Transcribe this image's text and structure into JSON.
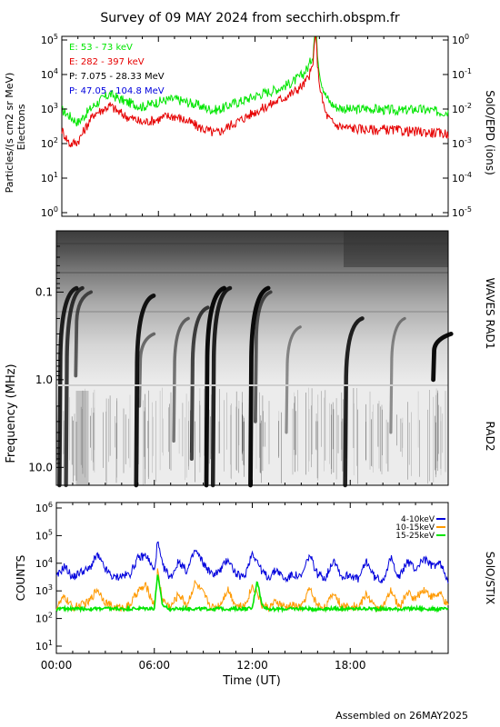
{
  "title": "Survey of 09 MAY 2024 from secchirh.obspm.fr",
  "footer": "Assembled on 26MAY2025",
  "x_axis": {
    "label": "Time (UT)",
    "ticks": [
      "00:00",
      "06:00",
      "12:00",
      "18:00"
    ],
    "range_hours": [
      0,
      24
    ]
  },
  "panels": {
    "particles": {
      "ylabel_left": "Particles/(s cm2 sr MeV)",
      "ylabel_left2": "Electrons",
      "ylabel_right": "SolO/EPD (ions)",
      "left_ticks": [
        "10^0",
        "10^1",
        "10^2",
        "10^3",
        "10^4",
        "10^5"
      ],
      "right_ticks": [
        "10^-5",
        "10^-4",
        "10^-3",
        "10^-2",
        "10^-1",
        "10^0"
      ]
    },
    "spectrogram": {
      "ylabel": "Frequency (MHz)",
      "right_label_top": "WAVES RAD1",
      "right_label_bottom": "RAD2",
      "ticks": [
        "0.1",
        "1.0",
        "10.0"
      ]
    },
    "stix": {
      "ylabel": "COUNTS",
      "right_label": "SolO/STIX",
      "ticks": [
        "10^1",
        "10^2",
        "10^3",
        "10^4",
        "10^5",
        "10^6"
      ]
    }
  },
  "chart_data": [
    {
      "type": "line",
      "yscale": "log",
      "ylim": [
        1,
        100000
      ],
      "ylabel": "Particles/(s cm2 sr MeV)",
      "series": [
        {
          "name": "E: 53 - 73 keV",
          "color": "#00e600",
          "x": [
            0,
            0.5,
            1,
            1.5,
            2,
            2.5,
            3,
            3.5,
            4,
            4.5,
            5,
            5.5,
            6,
            6.5,
            7,
            7.5,
            8,
            8.5,
            9,
            9.5,
            10,
            10.5,
            11,
            11.5,
            12,
            12.5,
            13,
            13.5,
            14,
            14.5,
            15,
            15.3,
            15.6,
            15.75,
            15.9,
            16.1,
            16.4,
            16.7,
            17,
            17.5,
            18,
            18.5,
            19,
            19.5,
            20,
            20.5,
            21,
            21.5,
            22,
            22.5,
            23,
            23.5,
            24
          ],
          "y": [
            900,
            600,
            400,
            700,
            1200,
            1800,
            2500,
            1900,
            1500,
            1300,
            1100,
            1300,
            1500,
            1700,
            1800,
            1600,
            1400,
            1200,
            1000,
            900,
            1000,
            1300,
            1500,
            1800,
            2200,
            2600,
            3000,
            3600,
            4500,
            6000,
            9000,
            14000,
            30000,
            400000,
            25000,
            6000,
            2200,
            1400,
            1100,
            1000,
            900,
            950,
            1000,
            950,
            900,
            900,
            850,
            900,
            950,
            900,
            850,
            800,
            800
          ]
        },
        {
          "name": "E: 282 - 397 keV",
          "color": "#e60000",
          "x": [
            0,
            0.5,
            1,
            1.5,
            2,
            2.5,
            3,
            3.5,
            4,
            4.5,
            5,
            5.5,
            6,
            6.5,
            7,
            7.5,
            8,
            8.5,
            9,
            9.5,
            10,
            10.5,
            11,
            11.5,
            12,
            12.5,
            13,
            13.5,
            14,
            14.5,
            15,
            15.3,
            15.6,
            15.75,
            15.9,
            16.1,
            16.4,
            16.7,
            17,
            17.5,
            18,
            18.5,
            19,
            19.5,
            20,
            20.5,
            21,
            21.5,
            22,
            22.5,
            23,
            23.5,
            24
          ],
          "y": [
            250,
            100,
            120,
            300,
            700,
            900,
            1200,
            800,
            600,
            500,
            400,
            450,
            500,
            600,
            600,
            500,
            400,
            300,
            250,
            200,
            250,
            350,
            450,
            600,
            800,
            1000,
            1300,
            1700,
            2200,
            3000,
            4500,
            7000,
            15000,
            250000,
            12000,
            2500,
            700,
            450,
            350,
            300,
            280,
            270,
            260,
            250,
            260,
            250,
            240,
            230,
            220,
            220,
            210,
            200,
            200
          ]
        },
        {
          "name": "P: 7.075 - 28.33 MeV",
          "color": "#000000",
          "x": [],
          "y": []
        },
        {
          "name": "P: 47.05 - 104.8 MeV",
          "color": "#0000dd",
          "x": [],
          "y": []
        }
      ]
    },
    {
      "type": "heatmap",
      "ylabel": "Frequency (MHz)",
      "yscale": "log",
      "ylim": [
        0.02,
        16
      ],
      "bursts": [
        {
          "t": 0.3,
          "f_start": 0.09,
          "f_end": 16,
          "intensity": 0.85
        },
        {
          "t": 0.7,
          "f_start": 0.09,
          "f_end": 16,
          "intensity": 0.75
        },
        {
          "t": 1.3,
          "f_start": 0.1,
          "f_end": 0.9,
          "intensity": 0.6
        },
        {
          "t": 5.0,
          "f_start": 0.11,
          "f_end": 16,
          "intensity": 0.9
        },
        {
          "t": 5.2,
          "f_start": 0.3,
          "f_end": 2,
          "intensity": 0.5
        },
        {
          "t": 7.3,
          "f_start": 0.2,
          "f_end": 5,
          "intensity": 0.5
        },
        {
          "t": 8.4,
          "f_start": 0.15,
          "f_end": 8,
          "intensity": 0.7
        },
        {
          "t": 9.3,
          "f_start": 0.09,
          "f_end": 16,
          "intensity": 0.95
        },
        {
          "t": 9.7,
          "f_start": 0.09,
          "f_end": 16,
          "intensity": 0.85
        },
        {
          "t": 12.0,
          "f_start": 0.09,
          "f_end": 16,
          "intensity": 0.95
        },
        {
          "t": 12.3,
          "f_start": 0.1,
          "f_end": 3,
          "intensity": 0.6
        },
        {
          "t": 14.2,
          "f_start": 0.25,
          "f_end": 4,
          "intensity": 0.4
        },
        {
          "t": 17.8,
          "f_start": 0.2,
          "f_end": 16,
          "intensity": 0.85
        },
        {
          "t": 20.6,
          "f_start": 0.2,
          "f_end": 4,
          "intensity": 0.4
        },
        {
          "t": 23.2,
          "f_start": 0.3,
          "f_end": 1.0,
          "intensity": 0.95
        }
      ]
    },
    {
      "type": "line",
      "yscale": "log",
      "ylim": [
        10,
        1000000
      ],
      "ylabel": "COUNTS",
      "series": [
        {
          "name": "4-10keV",
          "color": "#0000dd",
          "x": [
            0,
            0.5,
            1,
            1.5,
            2,
            2.5,
            3,
            3.5,
            4,
            4.5,
            5,
            5.5,
            6,
            6.2,
            6.5,
            7,
            7.5,
            8,
            8.5,
            9,
            9.5,
            10,
            10.5,
            11,
            11.5,
            12,
            12.3,
            12.6,
            13,
            13.5,
            14,
            14.5,
            15,
            15.5,
            16,
            16.5,
            17,
            17.5,
            18,
            18.5,
            19,
            19.5,
            20,
            20.5,
            21,
            21.5,
            22,
            22.5,
            23,
            23.5,
            24
          ],
          "y": [
            3000,
            8000,
            3000,
            5000,
            6000,
            20000,
            6000,
            3000,
            3500,
            4000,
            15000,
            20000,
            5000,
            60000,
            8000,
            3000,
            12000,
            5000,
            30000,
            10000,
            4000,
            5000,
            15000,
            4000,
            3000,
            25000,
            12000,
            5000,
            3000,
            6000,
            2500,
            4000,
            3000,
            20000,
            4000,
            3000,
            15000,
            3000,
            4000,
            2500,
            12000,
            3000,
            2500,
            15000,
            3000,
            12000,
            6000,
            15000,
            8000,
            10000,
            2500
          ]
        },
        {
          "name": "10-15keV",
          "color": "#ff9900",
          "x": [
            0,
            0.5,
            1,
            1.5,
            2,
            2.5,
            3,
            3.5,
            4,
            4.5,
            5,
            5.5,
            6,
            6.2,
            6.5,
            7,
            7.5,
            8,
            8.5,
            9,
            9.5,
            10,
            10.5,
            11,
            11.5,
            12,
            12.3,
            12.6,
            13,
            13.5,
            14,
            14.5,
            15,
            15.5,
            16,
            16.5,
            17,
            17.5,
            18,
            18.5,
            19,
            19.5,
            20,
            20.5,
            21,
            21.5,
            22,
            22.5,
            23,
            23.5,
            24
          ],
          "y": [
            250,
            600,
            250,
            300,
            400,
            1200,
            400,
            250,
            250,
            300,
            1000,
            1500,
            300,
            5000,
            500,
            250,
            800,
            300,
            2000,
            800,
            250,
            300,
            1200,
            300,
            250,
            1500,
            900,
            300,
            250,
            400,
            250,
            300,
            250,
            1200,
            300,
            250,
            900,
            250,
            300,
            250,
            800,
            250,
            250,
            1000,
            250,
            900,
            500,
            1200,
            600,
            800,
            250
          ]
        },
        {
          "name": "15-25keV",
          "color": "#00e600",
          "x": [
            0,
            1,
            2,
            3,
            4,
            5,
            6,
            6.2,
            6.5,
            7,
            8,
            9,
            10,
            11,
            12,
            12.3,
            12.6,
            13,
            14,
            15,
            16,
            17,
            18,
            19,
            20,
            21,
            22,
            23,
            24
          ],
          "y": [
            220,
            230,
            220,
            230,
            220,
            230,
            230,
            4000,
            300,
            220,
            230,
            220,
            230,
            220,
            230,
            2500,
            300,
            220,
            220,
            230,
            220,
            230,
            220,
            230,
            220,
            220,
            230,
            220,
            220
          ]
        }
      ]
    }
  ]
}
